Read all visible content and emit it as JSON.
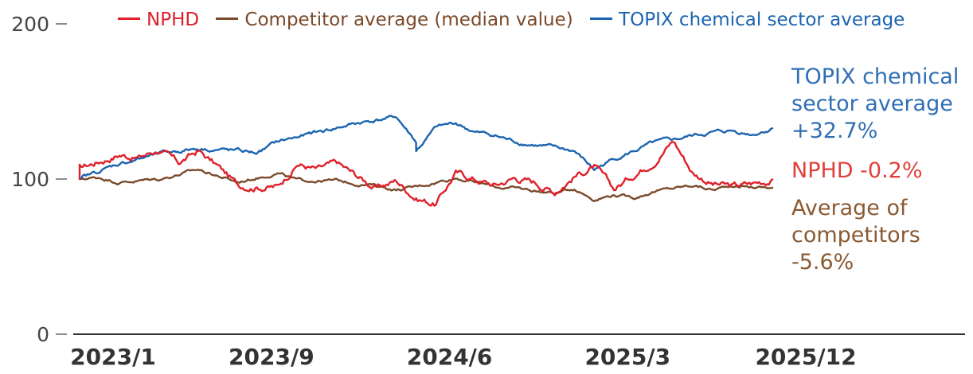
{
  "chart_data": {
    "type": "line",
    "yticks": [
      0,
      100,
      200
    ],
    "ylim": [
      0,
      200
    ],
    "xtick_labels": [
      "2023/1",
      "2023/9",
      "2024/6",
      "2025/3",
      "2025/12"
    ],
    "xlabel": "",
    "ylabel": "",
    "grid": false,
    "legend_position": "top",
    "series": [
      {
        "name": "NPHD",
        "color": "#e0202a",
        "points": [
          [
            "2023/1",
            100
          ],
          [
            "2023/1",
            107
          ],
          [
            "2023/3",
            116
          ],
          [
            "2023/4",
            114
          ],
          [
            "2023/5",
            119
          ],
          [
            "2023/6",
            110
          ],
          [
            "2023/7",
            118
          ],
          [
            "2023/8",
            108
          ],
          [
            "2023/9",
            96
          ],
          [
            "2023/11",
            95
          ],
          [
            "2023/12",
            110
          ],
          [
            "2024/1",
            106
          ],
          [
            "2024/2",
            110
          ],
          [
            "2024/3",
            102
          ],
          [
            "2024/4",
            94
          ],
          [
            "2024/5",
            99
          ],
          [
            "2024/6",
            88
          ],
          [
            "2024/7",
            84
          ],
          [
            "2024/8",
            104
          ],
          [
            "2024/9",
            100
          ],
          [
            "2024/10",
            96
          ],
          [
            "2024/11",
            101
          ],
          [
            "2024/12",
            98
          ],
          [
            "2025/1",
            92
          ],
          [
            "2025/2",
            102
          ],
          [
            "2025/3",
            108
          ],
          [
            "2025/4",
            93
          ],
          [
            "2025/5",
            103
          ],
          [
            "2025/6",
            112
          ],
          [
            "2025/7",
            125
          ],
          [
            "2025/8",
            104
          ],
          [
            "2025/9",
            97
          ],
          [
            "2025/10",
            95
          ],
          [
            "2025/11",
            97
          ],
          [
            "2025/12",
            99.8
          ]
        ]
      },
      {
        "name": "Competitor average (median value)",
        "color": "#7a4a2a",
        "points": [
          [
            "2023/1",
            100
          ],
          [
            "2023/2",
            101
          ],
          [
            "2023/3",
            98
          ],
          [
            "2023/5",
            100
          ],
          [
            "2023/7",
            106
          ],
          [
            "2023/9",
            98
          ],
          [
            "2023/10",
            101
          ],
          [
            "2023/11",
            104
          ],
          [
            "2023/12",
            99
          ],
          [
            "2024/2",
            99
          ],
          [
            "2024/3",
            97
          ],
          [
            "2024/4",
            96
          ],
          [
            "2024/5",
            93
          ],
          [
            "2024/6",
            95
          ],
          [
            "2024/7",
            98
          ],
          [
            "2024/8",
            101
          ],
          [
            "2024/9",
            98
          ],
          [
            "2024/10",
            95
          ],
          [
            "2024/11",
            94
          ],
          [
            "2025/1",
            91
          ],
          [
            "2025/2",
            94
          ],
          [
            "2025/3",
            87
          ],
          [
            "2025/4",
            90
          ],
          [
            "2025/5",
            88
          ],
          [
            "2025/6",
            92
          ],
          [
            "2025/7",
            94
          ],
          [
            "2025/8",
            96
          ],
          [
            "2025/9",
            93
          ],
          [
            "2025/10",
            96
          ],
          [
            "2025/11",
            95
          ],
          [
            "2025/12",
            94.4
          ]
        ]
      },
      {
        "name": "TOPIX chemical sector average",
        "color": "#1c64b0",
        "points": [
          [
            "2023/1",
            100
          ],
          [
            "2023/3",
            110
          ],
          [
            "2023/5",
            116
          ],
          [
            "2023/7",
            120
          ],
          [
            "2023/9",
            118
          ],
          [
            "2023/10",
            117
          ],
          [
            "2023/11",
            124
          ],
          [
            "2024/1",
            130
          ],
          [
            "2024/3",
            136
          ],
          [
            "2024/4",
            138
          ],
          [
            "2024/5",
            140
          ],
          [
            "2024/6",
            124
          ],
          [
            "2024/6",
            118
          ],
          [
            "2024/7",
            133
          ],
          [
            "2024/8",
            136
          ],
          [
            "2024/9",
            130
          ],
          [
            "2024/10",
            128
          ],
          [
            "2024/11",
            124
          ],
          [
            "2025/1",
            120
          ],
          [
            "2025/2",
            118
          ],
          [
            "2025/3",
            106
          ],
          [
            "2025/4",
            113
          ],
          [
            "2025/5",
            118
          ],
          [
            "2025/6",
            123
          ],
          [
            "2025/7",
            125
          ],
          [
            "2025/8",
            128
          ],
          [
            "2025/9",
            130
          ],
          [
            "2025/10",
            131
          ],
          [
            "2025/11",
            129
          ],
          [
            "2025/12",
            132.7
          ]
        ]
      }
    ],
    "annotations": [
      {
        "id": "topix",
        "lines": [
          "TOPIX chemical",
          "sector average",
          "+32.7%"
        ],
        "color": "#2f6fb5"
      },
      {
        "id": "nphd",
        "lines": [
          "NPHD -0.2%"
        ],
        "color": "#e0403a"
      },
      {
        "id": "comp",
        "lines": [
          "Average of",
          "competitors",
          "-5.6%"
        ],
        "color": "#8a5a32"
      }
    ]
  }
}
